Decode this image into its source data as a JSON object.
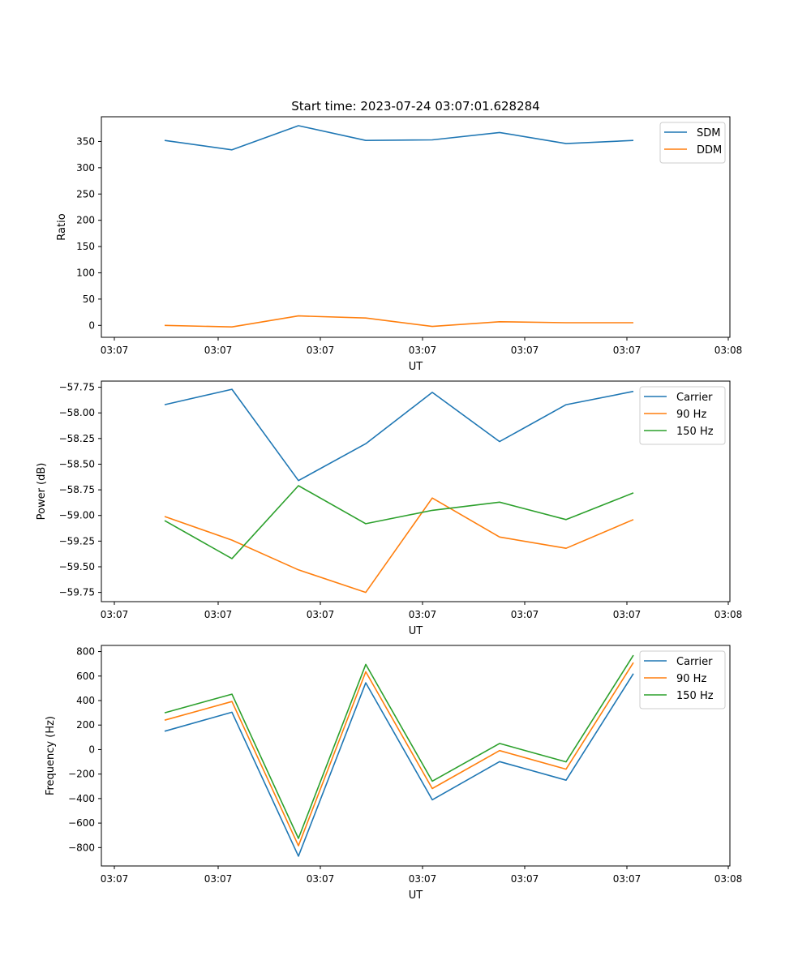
{
  "chart_data": [
    {
      "type": "line",
      "title": "Start time: 2023-07-24 03:07:01.628284",
      "xlabel": "UT",
      "ylabel": "Ratio",
      "x_tick_labels": [
        "03:07",
        "03:07",
        "03:07",
        "03:07",
        "03:07",
        "03:07",
        "03:08"
      ],
      "y_ticks": [
        0,
        50,
        100,
        150,
        200,
        250,
        300,
        350
      ],
      "ylim": [
        -22.7,
        397.0
      ],
      "x": [
        1,
        2,
        3,
        4,
        5,
        6,
        7,
        8
      ],
      "series": [
        {
          "name": "SDM",
          "color": "#1f77b4",
          "values": [
            352,
            334,
            380,
            352,
            353,
            367,
            346,
            352
          ]
        },
        {
          "name": "DDM",
          "color": "#ff7f0e",
          "values": [
            0,
            -3,
            18,
            14,
            -2,
            7,
            5,
            5
          ]
        }
      ],
      "legend": "top-right"
    },
    {
      "type": "line",
      "title": "",
      "xlabel": "UT",
      "ylabel": "Power (dB)",
      "x_tick_labels": [
        "03:07",
        "03:07",
        "03:07",
        "03:07",
        "03:07",
        "03:07",
        "03:08"
      ],
      "y_ticks": [
        -59.75,
        -59.5,
        -59.25,
        -59.0,
        -58.75,
        -58.5,
        -58.25,
        -58.0,
        -57.75
      ],
      "y_tick_labels": [
        "−59.75",
        "−59.50",
        "−59.25",
        "−59.00",
        "−58.75",
        "−58.50",
        "−58.25",
        "−58.00",
        "−57.75"
      ],
      "ylim": [
        -59.84,
        -57.69
      ],
      "x": [
        1,
        2,
        3,
        4,
        5,
        6,
        7,
        8
      ],
      "series": [
        {
          "name": "Carrier",
          "color": "#1f77b4",
          "values": [
            -57.92,
            -57.77,
            -58.66,
            -58.3,
            -57.8,
            -58.28,
            -57.92,
            -57.79
          ]
        },
        {
          "name": "90 Hz",
          "color": "#ff7f0e",
          "values": [
            -59.01,
            -59.24,
            -59.53,
            -59.75,
            -58.83,
            -59.21,
            -59.32,
            -59.04
          ]
        },
        {
          "name": "150 Hz",
          "color": "#2ca02c",
          "values": [
            -59.05,
            -59.42,
            -58.71,
            -59.08,
            -58.95,
            -58.87,
            -59.04,
            -58.78
          ]
        }
      ],
      "legend": "top-right"
    },
    {
      "type": "line",
      "title": "",
      "xlabel": "UT",
      "ylabel": "Frequency (Hz)",
      "x_tick_labels": [
        "03:07",
        "03:07",
        "03:07",
        "03:07",
        "03:07",
        "03:07",
        "03:08"
      ],
      "y_ticks": [
        -800,
        -600,
        -400,
        -200,
        0,
        200,
        400,
        600,
        800
      ],
      "y_tick_labels": [
        "−800",
        "−600",
        "−400",
        "−200",
        "0",
        "200",
        "400",
        "600",
        "800"
      ],
      "ylim": [
        -950,
        850
      ],
      "x": [
        1,
        2,
        3,
        4,
        5,
        6,
        7,
        8
      ],
      "series": [
        {
          "name": "Carrier",
          "color": "#1f77b4",
          "values": [
            150,
            305,
            -870,
            545,
            -410,
            -98,
            -250,
            620
          ]
        },
        {
          "name": "90 Hz",
          "color": "#ff7f0e",
          "values": [
            240,
            392,
            -785,
            635,
            -318,
            -8,
            -160,
            710
          ]
        },
        {
          "name": "150 Hz",
          "color": "#2ca02c",
          "values": [
            300,
            452,
            -725,
            695,
            -258,
            50,
            -100,
            770
          ]
        }
      ],
      "legend": "top-right"
    }
  ]
}
